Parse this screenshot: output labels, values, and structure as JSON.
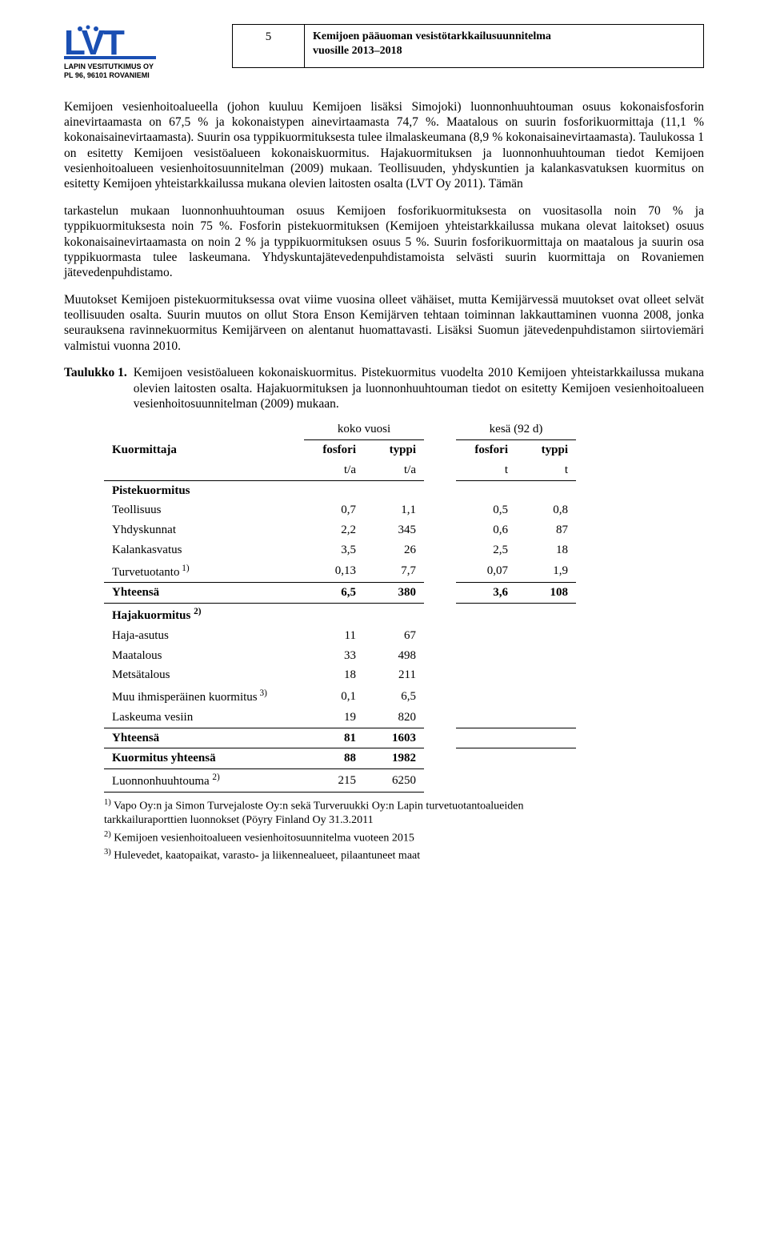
{
  "header": {
    "logo_text": "LVT",
    "logo_color": "#1a4fb3",
    "logo_sub1": "LAPIN VESITUTKIMUS OY",
    "logo_sub2": "PL 96, 96101 ROVANIEMI",
    "page_number": "5",
    "doc_title_1": "Kemijoen pääuoman vesistötarkkailusuunnitelma",
    "doc_title_2": "vuosille 2013–2018"
  },
  "body": {
    "p1": "Kemijoen vesienhoitoalueella (johon kuuluu Kemijoen lisäksi Simojoki) luonnonhuuhtouman osuus kokonaisfosforin ainevirtaamasta on 67,5 % ja kokonaistypen ainevirtaamasta 74,7 %. Maatalous on suurin fosforikuormittaja (11,1 % kokonaisainevirtaamasta). Suurin osa typpikuormituksesta tulee ilmalaskeumana (8,9 % kokonaisainevirtaamasta). Taulukossa 1 on esitetty Kemijoen vesistöalueen kokonaiskuormitus. Hajakuormituksen ja luonnonhuuhtouman tiedot Kemijoen vesienhoitoalueen vesienhoitosuunnitelman (2009) mukaan. Teollisuuden, yhdyskuntien ja kalankasvatuksen kuormitus on esitetty Kemijoen yhteistarkkailussa mukana olevien laitosten osalta (LVT Oy 2011). Tämän",
    "p2": "tarkastelun mukaan luonnonhuuhtouman osuus Kemijoen fosforikuormituksesta on vuositasolla noin 70 % ja typpikuormituksesta noin 75 %. Fosforin pistekuormituksen (Kemijoen yhteistarkkailussa mukana olevat laitokset) osuus kokonaisainevirtaamasta on noin 2 % ja typpikuormituksen osuus 5 %. Suurin fosforikuormittaja on maatalous ja suurin osa typpikuormasta tulee laskeumana. Yhdyskuntajätevedenpuhdistamoista selvästi suurin kuormittaja on Rovaniemen jätevedenpuhdistamo.",
    "p3": "Muutokset Kemijoen pistekuormituksessa ovat viime vuosina olleet vähäiset, mutta Kemijärvessä muutokset ovat olleet selvät teollisuuden osalta. Suurin muutos on ollut Stora Enson Kemijärven tehtaan toiminnan lakkauttaminen vuonna 2008, jonka seurauksena ravinnekuormitus Kemijärveen on alentanut huomattavasti. Lisäksi Suomun jätevedenpuhdistamon siirtoviemäri valmistui vuonna 2010."
  },
  "table1": {
    "caption_label": "Taulukko 1.",
    "caption_text": "Kemijoen vesistöalueen kokonaiskuormitus. Pistekuormitus vuodelta 2010 Kemijoen yhteistarkkailussa mukana olevien laitosten osalta. Hajakuormituksen ja luonnonhuuhtouman tiedot on esitetty Kemijoen vesienhoitoalueen vesienhoitosuunnitelman (2009) mukaan.",
    "group_year": "koko vuosi",
    "group_summer": "kesä (92 d)",
    "col_kuormittaja": "Kuormittaja",
    "col_fosfori": "fosfori",
    "col_typpi": "typpi",
    "unit_ta": "t/a",
    "unit_t": "t",
    "section_piste": "Pistekuormitus",
    "rows_piste": [
      {
        "label": "Teollisuus",
        "v1": "0,7",
        "v2": "1,1",
        "v3": "0,5",
        "v4": "0,8"
      },
      {
        "label": "Yhdyskunnat",
        "v1": "2,2",
        "v2": "345",
        "v3": "0,6",
        "v4": "87"
      },
      {
        "label": "Kalankasvatus",
        "v1": "3,5",
        "v2": "26",
        "v3": "2,5",
        "v4": "18"
      },
      {
        "label": "Turvetuotanto",
        "sup": "1)",
        "v1": "0,13",
        "v2": "7,7",
        "v3": "0,07",
        "v4": "1,9"
      }
    ],
    "total_piste": {
      "label": "Yhteensä",
      "v1": "6,5",
      "v2": "380",
      "v3": "3,6",
      "v4": "108"
    },
    "section_haja": "Hajakuormitus",
    "section_haja_sup": "2)",
    "rows_haja": [
      {
        "label": "Haja-asutus",
        "v1": "11",
        "v2": "67"
      },
      {
        "label": "Maatalous",
        "v1": "33",
        "v2": "498"
      },
      {
        "label": "Metsätalous",
        "v1": "18",
        "v2": "211"
      },
      {
        "label": "Muu ihmisperäinen kuormitus",
        "sup": "3)",
        "v1": "0,1",
        "v2": "6,5"
      },
      {
        "label": "Laskeuma vesiin",
        "v1": "19",
        "v2": "820"
      }
    ],
    "total_haja": {
      "label": "Yhteensä",
      "v1": "81",
      "v2": "1603"
    },
    "total_all": {
      "label": "Kuormitus yhteensä",
      "v1": "88",
      "v2": "1982"
    },
    "luonnon": {
      "label": "Luonnonhuuhtouma",
      "sup": "2)",
      "v1": "215",
      "v2": "6250"
    },
    "footnotes": {
      "f1": "Vapo Oy:n ja Simon Turvejaloste Oy:n sekä Turveruukki Oy:n Lapin turvetuotantoalueiden tarkkailuraporttien luonnokset (Pöyry Finland Oy 31.3.2011",
      "f1_sup": "1)",
      "f2": "Kemijoen vesienhoitoalueen vesienhoitosuunnitelma vuoteen 2015",
      "f2_sup": "2)",
      "f3": "Hulevedet, kaatopaikat, varasto- ja liikennealueet, pilaantuneet maat",
      "f3_sup": "3)"
    }
  }
}
